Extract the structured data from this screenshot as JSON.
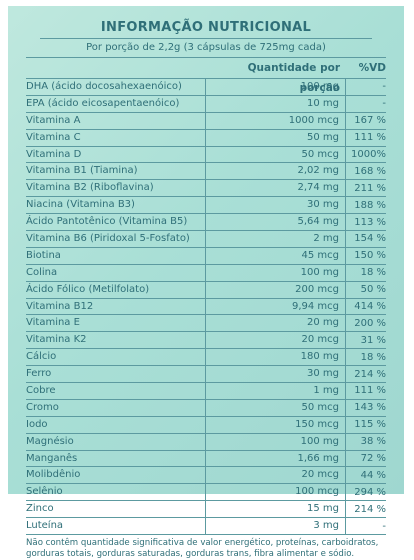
{
  "title": "INFORMAÇÃO NUTRICIONAL",
  "subtitle": "Por porção de 2,2g (3 cápsulas de 725mg cada)",
  "headers": {
    "quantity": "Quantidade por porção",
    "vd": "%VD"
  },
  "rows": [
    {
      "name": "DHA (ácido docosahexaenóico)",
      "qty": "100 mg",
      "vd": "-"
    },
    {
      "name": "EPA (ácido eicosapentaenóico)",
      "qty": "10 mg",
      "vd": "-"
    },
    {
      "name": "Vitamina A",
      "qty": "1000 mcg",
      "vd": "167 %"
    },
    {
      "name": "Vitamina C",
      "qty": "50 mg",
      "vd": "111 %"
    },
    {
      "name": "Vitamina D",
      "qty": "50 mcg",
      "vd": "1000%"
    },
    {
      "name": "Vitamina B1 (Tiamina)",
      "qty": "2,02 mg",
      "vd": "168 %"
    },
    {
      "name": "Vitamina B2 (Riboflavina)",
      "qty": "2,74 mg",
      "vd": "211 %"
    },
    {
      "name": "Niacina (Vitamina B3)",
      "qty": "30 mg",
      "vd": "188 %"
    },
    {
      "name": "Ácido Pantotênico (Vitamina B5)",
      "qty": "5,64 mg",
      "vd": "113 %"
    },
    {
      "name": "Vitamina B6 (Piridoxal 5-Fosfato)",
      "qty": "2 mg",
      "vd": "154 %"
    },
    {
      "name": "Biotina",
      "qty": "45 mcg",
      "vd": "150 %"
    },
    {
      "name": "Colina",
      "qty": "100 mg",
      "vd": "18 %"
    },
    {
      "name": "Ácido Fólico (Metilfolato)",
      "qty": "200 mcg",
      "vd": "50 %"
    },
    {
      "name": "Vitamina B12",
      "qty": "9,94 mcg",
      "vd": "414 %"
    },
    {
      "name": "Vitamina E",
      "qty": "20 mg",
      "vd": "200 %"
    },
    {
      "name": "Vitamina K2",
      "qty": "20 mcg",
      "vd": "31 %"
    },
    {
      "name": "Cálcio",
      "qty": "180 mg",
      "vd": "18 %"
    },
    {
      "name": "Ferro",
      "qty": "30 mg",
      "vd": "214 %"
    },
    {
      "name": "Cobre",
      "qty": "1 mg",
      "vd": "111 %"
    },
    {
      "name": "Cromo",
      "qty": "50 mcg",
      "vd": "143 %"
    },
    {
      "name": "Iodo",
      "qty": "150 mcg",
      "vd": "115 %"
    },
    {
      "name": "Magnésio",
      "qty": "100 mg",
      "vd": "38 %"
    },
    {
      "name": "Manganês",
      "qty": "1,66 mg",
      "vd": "72 %"
    },
    {
      "name": "Molibdênio",
      "qty": "20 mcg",
      "vd": "44 %"
    },
    {
      "name": "Selênio",
      "qty": "100 mcg",
      "vd": "294 %"
    },
    {
      "name": "Zinco",
      "qty": "15 mg",
      "vd": "214 %"
    },
    {
      "name": "Luteína",
      "qty": "3 mg",
      "vd": "-"
    }
  ],
  "footnote": "Não contêm quantidade significativa de valor energético, proteínas, carboidratos, gorduras totais, gorduras saturadas, gorduras trans, fibra alimentar e sódio.",
  "colors": {
    "background": "#a9dfd6",
    "text": "#2f6f78",
    "lines": "#5c9aa0"
  }
}
